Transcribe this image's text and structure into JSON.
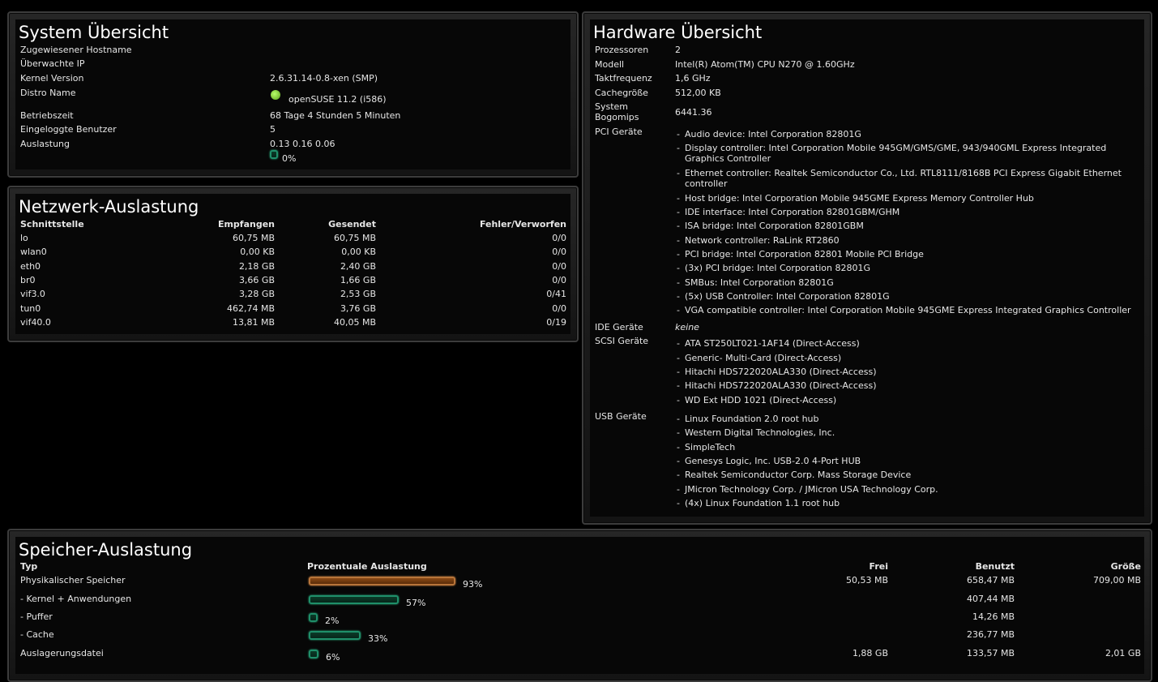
{
  "system": {
    "title": "System Übersicht",
    "rows": [
      {
        "label": "Zugewiesener Hostname",
        "value": ""
      },
      {
        "label": "Überwachte IP",
        "value": ""
      },
      {
        "label": "Kernel Version",
        "value": "2.6.31.14-0.8-xen (SMP)"
      },
      {
        "label": "Distro Name",
        "value": "openSUSE 11.2 (i586)"
      },
      {
        "label": "Betriebszeit",
        "value": "68 Tage 4 Stunden 5 Minuten"
      },
      {
        "label": "Eingeloggte Benutzer",
        "value": "5"
      },
      {
        "label": "Auslastung",
        "value": "0.13 0.16 0.06"
      }
    ],
    "load_percent": 0,
    "load_percent_label": "0%",
    "distro_icon": "opensuse-logo-icon"
  },
  "network": {
    "title": "Netzwerk-Auslastung",
    "headers": [
      "Schnittstelle",
      "Empfangen",
      "Gesendet",
      "Fehler/Verworfen"
    ],
    "rows": [
      [
        "lo",
        "60,75 MB",
        "60,75 MB",
        "0/0"
      ],
      [
        "wlan0",
        "0,00 KB",
        "0,00 KB",
        "0/0"
      ],
      [
        "eth0",
        "2,18 GB",
        "2,40 GB",
        "0/0"
      ],
      [
        "br0",
        "3,66 GB",
        "1,66 GB",
        "0/0"
      ],
      [
        "vif3.0",
        "3,28 GB",
        "2,53 GB",
        "0/41"
      ],
      [
        "tun0",
        "462,74 MB",
        "3,76 GB",
        "0/0"
      ],
      [
        "vif40.0",
        "13,81 MB",
        "40,05 MB",
        "0/19"
      ]
    ]
  },
  "hardware": {
    "title": "Hardware Übersicht",
    "prozessoren_label": "Prozessoren",
    "prozessoren": "2",
    "modell_label": "Modell",
    "modell": "Intel(R) Atom(TM) CPU N270 @ 1.60GHz",
    "takt_label": "Taktfrequenz",
    "takt": "1,6 GHz",
    "cache_label": "Cachegröße",
    "cache": "512,00 KB",
    "bogo_label_1": "System",
    "bogo_label_2": "Bogomips",
    "bogo": "6441.36",
    "pci_label": "PCI Geräte",
    "pci": [
      "Audio device: Intel Corporation 82801G",
      "Display controller: Intel Corporation Mobile 945GM/GMS/GME, 943/940GML Express Integrated Graphics Controller",
      "Ethernet controller: Realtek Semiconductor Co., Ltd. RTL8111/8168B PCI Express Gigabit Ethernet controller",
      "Host bridge: Intel Corporation Mobile 945GME Express Memory Controller Hub",
      "IDE interface: Intel Corporation 82801GBM/GHM",
      "ISA bridge: Intel Corporation 82801GBM",
      "Network controller: RaLink RT2860",
      "PCI bridge: Intel Corporation 82801 Mobile PCI Bridge",
      "(3x) PCI bridge: Intel Corporation 82801G",
      "SMBus: Intel Corporation 82801G",
      "(5x) USB Controller: Intel Corporation 82801G",
      "VGA compatible controller: Intel Corporation Mobile 945GME Express Integrated Graphics Controller"
    ],
    "ide_label": "IDE Geräte",
    "ide": "keine",
    "scsi_label": "SCSI Geräte",
    "scsi": [
      "ATA ST250LT021-1AF14 (Direct-Access)",
      "Generic- Multi-Card (Direct-Access)",
      "Hitachi HDS722020ALA330 (Direct-Access)",
      "Hitachi HDS722020ALA330 (Direct-Access)",
      "WD Ext HDD 1021 (Direct-Access)"
    ],
    "usb_label": "USB Geräte",
    "usb": [
      "Linux Foundation 2.0 root hub",
      "Western Digital Technologies, Inc.",
      "SimpleTech",
      "Genesys Logic, Inc. USB-2.0 4-Port HUB",
      "Realtek Semiconductor Corp. Mass Storage Device",
      "JMicron Technology Corp. / JMicron USA Technology Corp.",
      "(4x) Linux Foundation 1.1 root hub"
    ]
  },
  "memory": {
    "title": "Speicher-Auslastung",
    "headers": [
      "Typ",
      "Prozentuale Auslastung",
      "Frei",
      "Benutzt",
      "Größe"
    ],
    "rows": [
      {
        "typ": "Physikalischer Speicher",
        "percent": 93,
        "percent_label": "93%",
        "frei": "50,53 MB",
        "benutzt": "658,47 MB",
        "groesse": "709,00 MB",
        "color": "#b8753a"
      },
      {
        "typ": "- Kernel + Anwendungen",
        "percent": 57,
        "percent_label": "57%",
        "frei": "",
        "benutzt": "407,44 MB",
        "groesse": "",
        "color": "#1f8f6a"
      },
      {
        "typ": "- Puffer",
        "percent": 2,
        "percent_label": "2%",
        "frei": "",
        "benutzt": "14,26 MB",
        "groesse": "",
        "color": "#1f8f6a"
      },
      {
        "typ": "- Cache",
        "percent": 33,
        "percent_label": "33%",
        "frei": "",
        "benutzt": "236,77 MB",
        "groesse": "",
        "color": "#1f8f6a"
      },
      {
        "typ": "Auslagerungsdatei",
        "percent": 6,
        "percent_label": "6%",
        "frei": "1,88 GB",
        "benutzt": "133,57 MB",
        "groesse": "2,01 GB",
        "color": "#1f8f6a"
      }
    ]
  }
}
